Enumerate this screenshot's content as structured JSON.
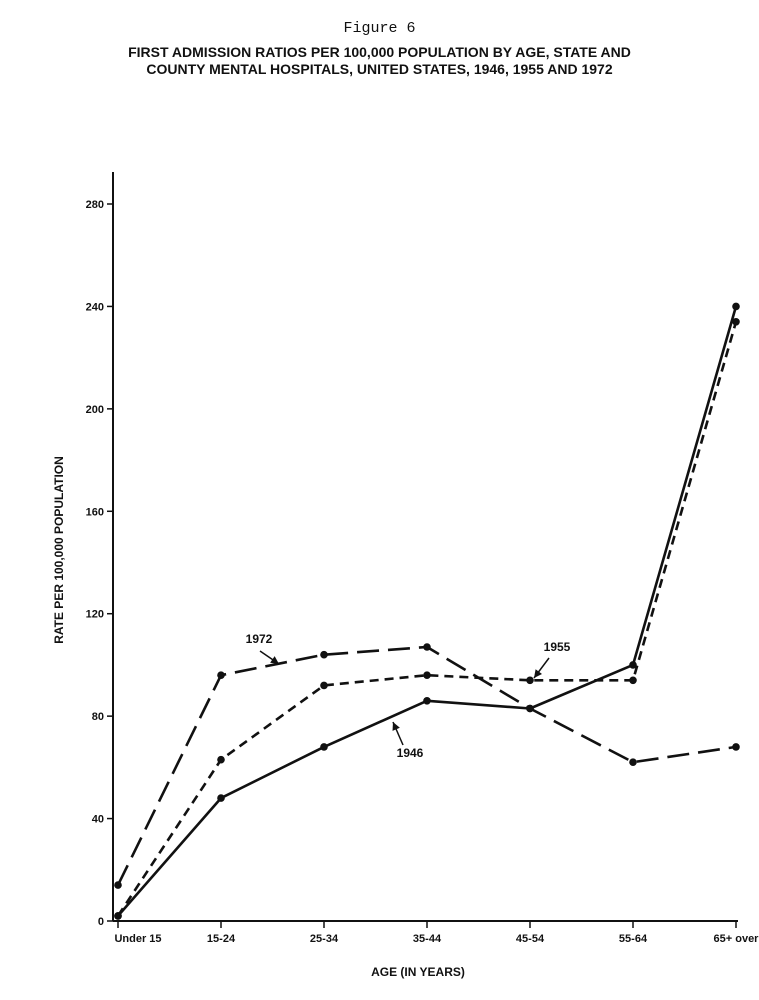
{
  "figure_label": "Figure 6",
  "title_lines": [
    "FIRST ADMISSION RATIOS PER 100,000 POPULATION BY AGE, STATE AND",
    "COUNTY MENTAL HOSPITALS, UNITED STATES, 1946, 1955 AND 1972"
  ],
  "chart_data": {
    "type": "line",
    "title": "FIRST ADMISSION RATIOS PER 100,000 POPULATION BY AGE, STATE AND COUNTY MENTAL HOSPITALS, UNITED STATES, 1946, 1955 AND 1972",
    "xlabel": "AGE (IN YEARS)",
    "ylabel": "RATE PER 100,000 POPULATION",
    "categories": [
      "Under 15",
      "15-24",
      "25-34",
      "35-44",
      "45-54",
      "55-64",
      "65+ over"
    ],
    "ylim": [
      0,
      280
    ],
    "yticks": [
      0,
      40,
      80,
      120,
      160,
      200,
      240,
      280
    ],
    "grid": false,
    "series": [
      {
        "name": "1946",
        "style": "solid",
        "values": [
          2,
          48,
          68,
          86,
          83,
          100,
          240
        ]
      },
      {
        "name": "1955",
        "style": "short-dash",
        "values": [
          2,
          63,
          92,
          96,
          94,
          94,
          234
        ]
      },
      {
        "name": "1972",
        "style": "long-dash",
        "values": [
          14,
          96,
          104,
          107,
          83,
          62,
          68
        ]
      }
    ],
    "series_label_positions": [
      "below-middle",
      "right-middle",
      "upper-left"
    ]
  }
}
